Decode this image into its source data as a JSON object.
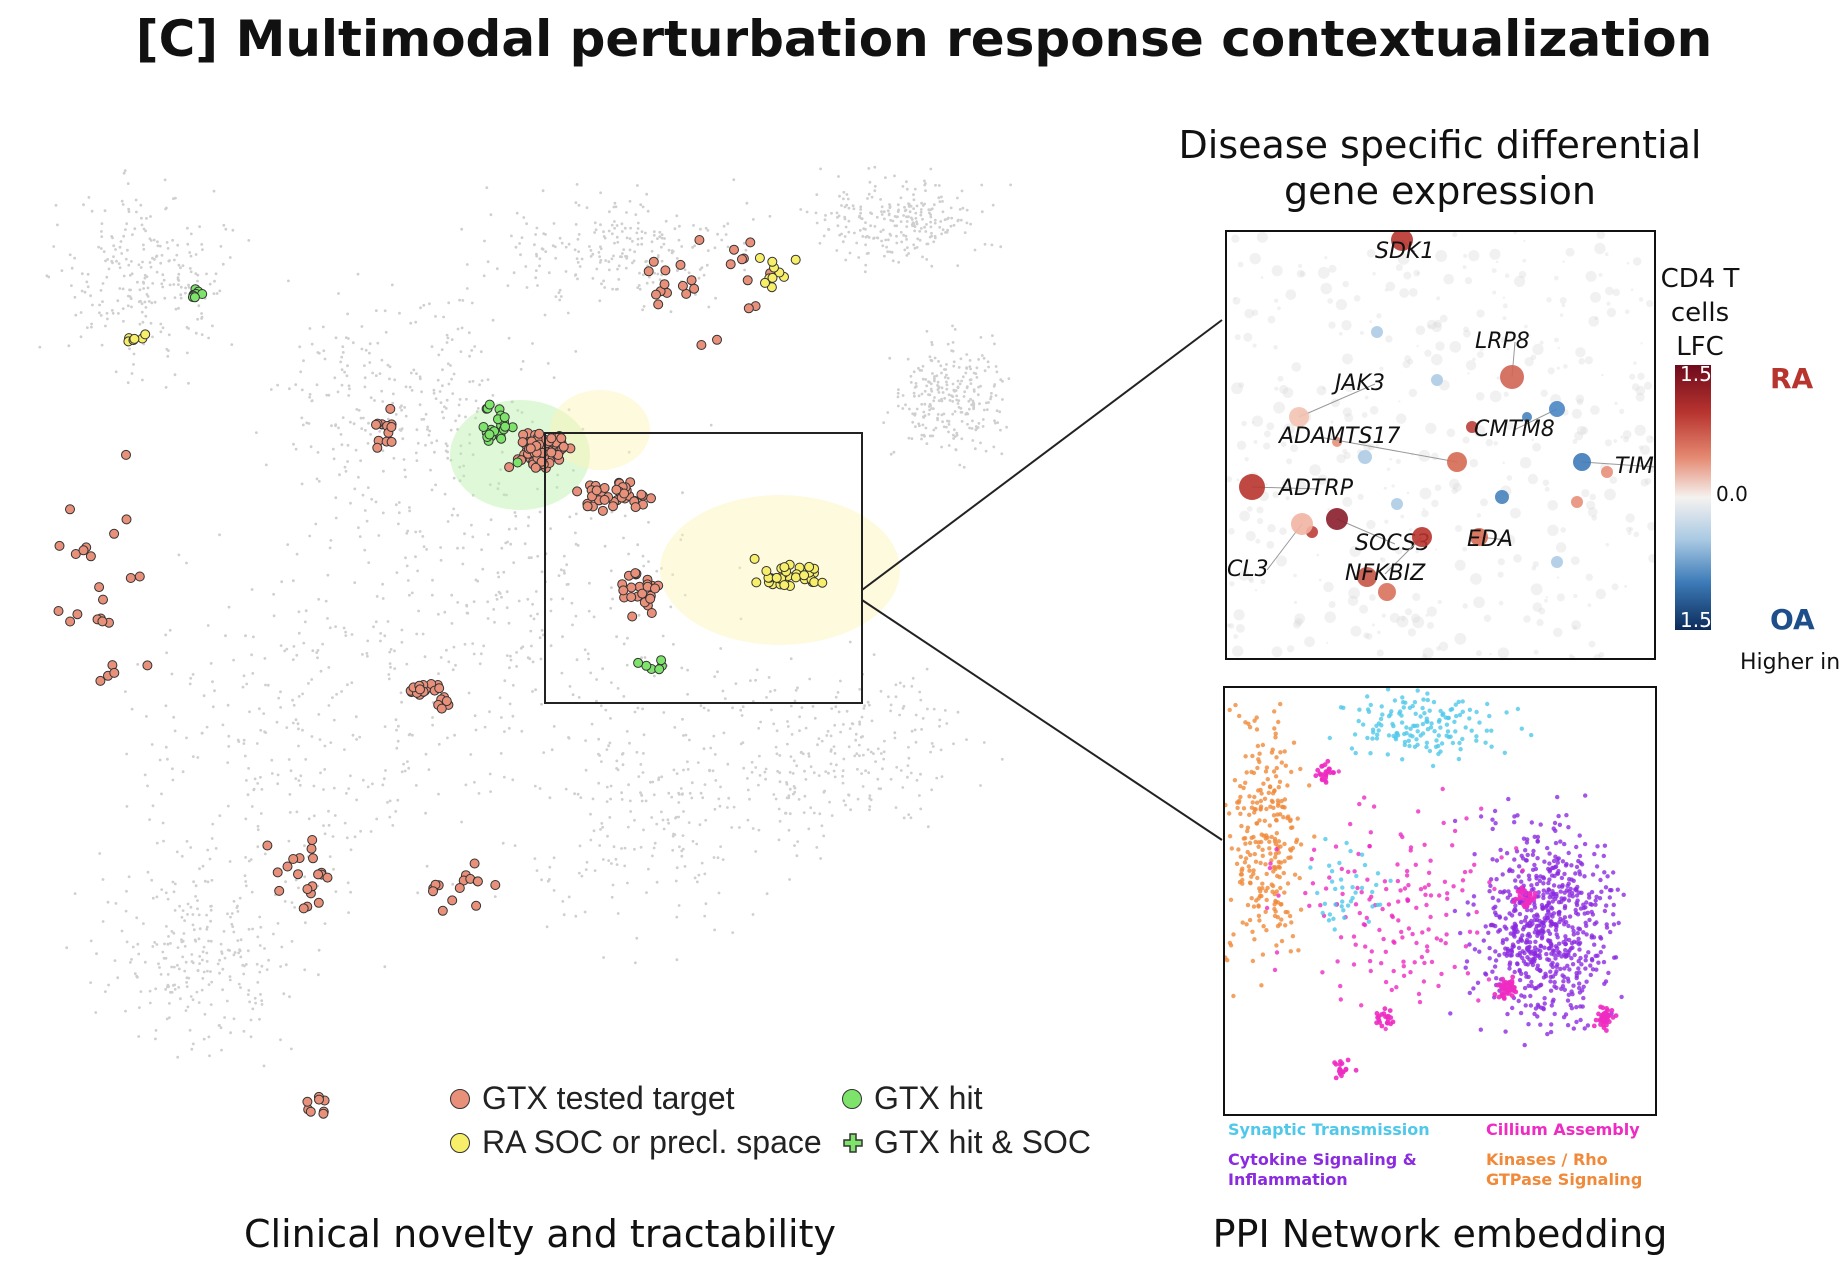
{
  "title": "[C] Multimodal perturbation response contextualization",
  "left_caption": "Clinical novelty and tractability",
  "right_top_title_line1": "Disease specific differential",
  "right_top_title_line2": "gene expression",
  "right_bottom_caption": "PPI Network embedding",
  "legend": {
    "tested": "GTX tested target",
    "soc": "RA SOC or precl. space",
    "hit": "GTX hit",
    "hit_soc": "GTX hit & SOC"
  },
  "colorbar": {
    "title_line1": "CD4 T",
    "title_line2": "cells LFC",
    "top_value": "1.5",
    "mid_value": "0.0",
    "bottom_value": "1.5",
    "top_group": "RA",
    "bottom_group": "OA",
    "footer": "Higher in"
  },
  "genes": [
    "SDK1",
    "LRP8",
    "JAK3",
    "ADAMTS17",
    "CMTM8",
    "TIM",
    "ADTRP",
    "SOCS3",
    "EDA",
    "CL3",
    "NFKBIZ"
  ],
  "ppi_categories": {
    "synaptic": "Synaptic Transmission",
    "cilium": "Cillium Assembly",
    "cytokine_line1": "Cytokine Signaling &",
    "cytokine_line2": "Inflammation",
    "kinases_line1": "Kinases / Rho",
    "kinases_line2": "GTPase Signaling"
  },
  "colors": {
    "tested": "#e8907a",
    "soc": "#f7ef6a",
    "hit": "#7ee36b",
    "ra": "#b8342f",
    "oa": "#1f4f8a",
    "synaptic": "#4fc8ea",
    "cilium": "#ee2bc2",
    "cytokine": "#8b2be0",
    "kinases": "#f08a3a"
  }
}
